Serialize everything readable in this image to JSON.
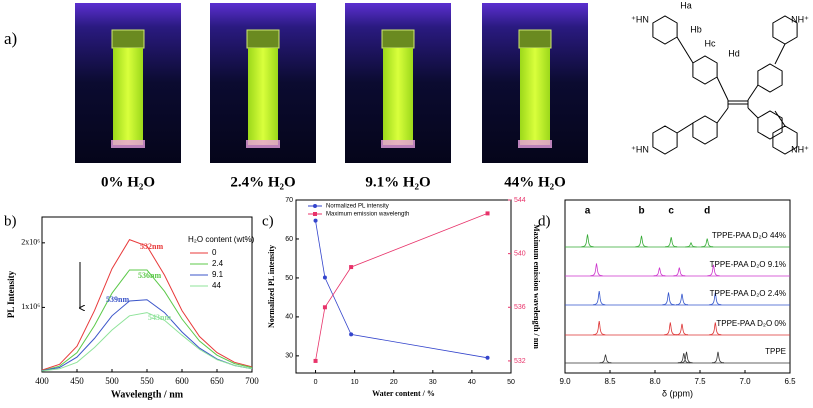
{
  "panel_labels": [
    "a)",
    "b)",
    "c)",
    "d)"
  ],
  "photos": [
    {
      "caption": "0% H₂O"
    },
    {
      "caption": "2.4% H₂O"
    },
    {
      "caption": "9.1% H₂O"
    },
    {
      "caption": "44% H₂O"
    }
  ],
  "molecule": {
    "labels": [
      "⁺HN",
      "NH⁺",
      "⁺HN",
      "NH⁺",
      "Ha",
      "Hb",
      "Hc",
      "Hd"
    ]
  },
  "chart_data": [
    {
      "type": "line",
      "x_label": "Wavelength / nm",
      "y_label": "PL Intensity",
      "x": [
        400,
        425,
        450,
        475,
        500,
        525,
        550,
        575,
        600,
        625,
        650,
        675,
        700
      ],
      "xlim": [
        400,
        700
      ],
      "xticks": [
        400,
        450,
        500,
        550,
        600,
        650,
        700
      ],
      "ylim": [
        0,
        2400000
      ],
      "yticks": [
        {
          "value": 1000000,
          "label": "1x10⁶"
        },
        {
          "value": 2000000,
          "label": "2x10⁶"
        }
      ],
      "legend_title": "H₂O content (wt%)",
      "series": [
        {
          "name": "0",
          "color": "#e8393a",
          "values": [
            30000,
            120000,
            400000,
            950000,
            1600000,
            2050000,
            1950000,
            1500000,
            950000,
            550000,
            300000,
            150000,
            80000
          ]
        },
        {
          "name": "2.4",
          "color": "#5cc94a",
          "values": [
            20000,
            90000,
            300000,
            720000,
            1220000,
            1580000,
            1580000,
            1250000,
            820000,
            480000,
            260000,
            130000,
            70000
          ]
        },
        {
          "name": "9.1",
          "color": "#3b55c9",
          "values": [
            20000,
            70000,
            230000,
            520000,
            870000,
            1100000,
            1120000,
            920000,
            620000,
            370000,
            200000,
            100000,
            50000
          ]
        },
        {
          "name": "44",
          "color": "#8fe39a",
          "values": [
            15000,
            50000,
            150000,
            380000,
            650000,
            870000,
            920000,
            800000,
            570000,
            350000,
            190000,
            100000,
            50000
          ]
        }
      ],
      "peak_labels": [
        "532nm",
        "536nm",
        "539nm",
        "543nm"
      ]
    },
    {
      "type": "line",
      "x_label": "Water content / %",
      "y_label": "Normalized PL intensity",
      "y2_label": "Maximum emission wavelength / nm",
      "x": [
        0,
        2.4,
        9.1,
        44
      ],
      "xlim": [
        -5,
        50
      ],
      "xticks": [
        0,
        10,
        20,
        30,
        40,
        50
      ],
      "ylim": [
        25.6,
        70
      ],
      "yticks": [
        30,
        40,
        50,
        60,
        70
      ],
      "y2lim": [
        531.1,
        544
      ],
      "y2ticks": [
        532,
        536,
        540,
        544
      ],
      "series": [
        {
          "name": "Normalized PL intensity",
          "color": "#3344cc",
          "values": [
            64.7,
            50.1,
            35.5,
            29.5
          ]
        },
        {
          "name": "Maximum emission wavelength",
          "color": "#e8336a",
          "axis": "y2",
          "values": [
            532,
            536,
            539,
            543
          ]
        }
      ]
    },
    {
      "type": "spectrum",
      "x_label": "δ (ppm)",
      "xlim": [
        9,
        6.5
      ],
      "xticks": [
        {
          "value": 9,
          "label": "9.0"
        },
        8.5,
        {
          "value": 8,
          "label": "8.0"
        },
        7.5,
        {
          "value": 7,
          "label": "7.0"
        },
        6.5
      ],
      "peak_labels": [
        "a",
        "b",
        "c",
        "d"
      ],
      "series": [
        {
          "name": "TPPE-PAA D₂O 44%",
          "color": "#33aa33",
          "x": [
            8.75,
            8.15,
            7.82,
            7.6,
            7.42
          ],
          "values": [
            0.9,
            0.8,
            0.7,
            0.3,
            0.6
          ]
        },
        {
          "name": "TPPE-PAA D₂O 9.1%",
          "color": "#cc33cc",
          "x": [
            8.65,
            7.95,
            7.73,
            7.35
          ],
          "values": [
            0.9,
            0.6,
            0.6,
            0.8
          ]
        },
        {
          "name": "TPPE-PAA D₂O 2.4%",
          "color": "#3355cc",
          "x": [
            8.62,
            7.85,
            7.7,
            7.33
          ],
          "values": [
            1,
            0.9,
            0.8,
            0.9
          ]
        },
        {
          "name": "TPPE-PAA D₂O 0%",
          "color": "#dd3333",
          "x": [
            8.62,
            7.83,
            7.7,
            7.33
          ],
          "values": [
            1,
            0.9,
            0.8,
            0.9
          ]
        },
        {
          "name": "TPPE",
          "color": "#333333",
          "x": [
            8.55,
            7.68,
            7.65,
            7.3
          ],
          "values": [
            0.6,
            0.7,
            0.8,
            0.8
          ]
        }
      ]
    }
  ]
}
